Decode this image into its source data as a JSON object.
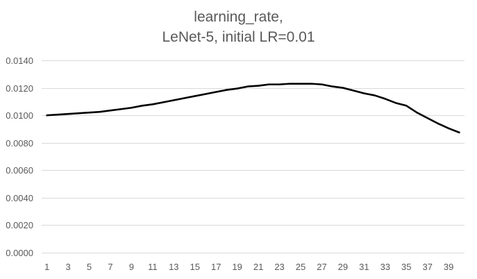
{
  "chart_data": {
    "type": "line",
    "title_lines": [
      "learning_rate,",
      "LeNet-5, initial LR=0.01"
    ],
    "xlabel": "",
    "ylabel": "",
    "x": [
      1,
      2,
      3,
      4,
      5,
      6,
      7,
      8,
      9,
      10,
      11,
      12,
      13,
      14,
      15,
      16,
      17,
      18,
      19,
      20,
      21,
      22,
      23,
      24,
      25,
      26,
      27,
      28,
      29,
      30,
      31,
      32,
      33,
      34,
      35,
      36,
      37,
      38,
      39,
      40
    ],
    "x_tick_labels": [
      "1",
      "3",
      "5",
      "7",
      "9",
      "11",
      "13",
      "15",
      "17",
      "19",
      "21",
      "23",
      "25",
      "27",
      "29",
      "31",
      "33",
      "35",
      "37",
      "39"
    ],
    "ylim": [
      0,
      0.014
    ],
    "y_ticks": [
      0,
      0.002,
      0.004,
      0.006,
      0.008,
      0.01,
      0.012,
      0.014
    ],
    "y_tick_labels": [
      "0.0000",
      "0.0020",
      "0.0040",
      "0.0060",
      "0.0080",
      "0.0100",
      "0.0120",
      "0.0140"
    ],
    "grid": true,
    "legend": "none",
    "series": [
      {
        "color": "#000000",
        "values": [
          0.01,
          0.01005,
          0.0101,
          0.01015,
          0.0102,
          0.01025,
          0.01035,
          0.01045,
          0.01055,
          0.0107,
          0.0108,
          0.01095,
          0.0111,
          0.01125,
          0.0114,
          0.01155,
          0.0117,
          0.01185,
          0.01195,
          0.0121,
          0.01215,
          0.01225,
          0.01225,
          0.0123,
          0.0123,
          0.0123,
          0.01225,
          0.0121,
          0.012,
          0.0118,
          0.0116,
          0.01145,
          0.0112,
          0.0109,
          0.0107,
          0.0102,
          0.0098,
          0.0094,
          0.00905,
          0.00875
        ]
      }
    ]
  }
}
